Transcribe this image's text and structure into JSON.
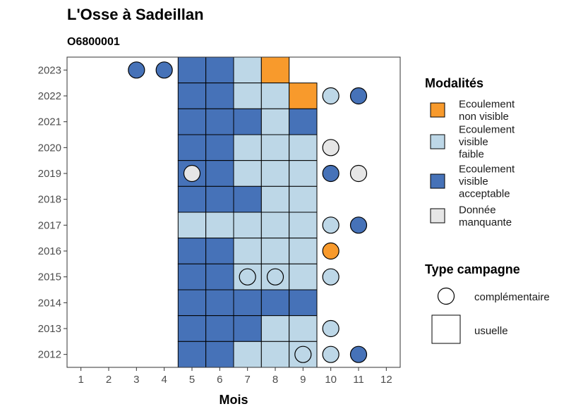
{
  "chart_data": {
    "type": "heatmap",
    "title": "L'Osse à Sadeillan",
    "subtitle": "O6800001",
    "xlabel": "Mois",
    "ylabel": "",
    "x_ticks": [
      "1",
      "2",
      "3",
      "4",
      "5",
      "6",
      "7",
      "8",
      "9",
      "10",
      "11",
      "12"
    ],
    "y_ticks": [
      "2012",
      "2013",
      "2014",
      "2015",
      "2016",
      "2017",
      "2018",
      "2019",
      "2020",
      "2021",
      "2022",
      "2023"
    ],
    "xlim": [
      0.5,
      12.5
    ],
    "ylim": [
      2011.5,
      2023.5
    ],
    "grid": false,
    "legend_placement": "right",
    "colors": {
      "ecoulement_non_visible": "#f89a2c",
      "ecoulement_visible_faible": "#bdd7e7",
      "ecoulement_visible_acceptable": "#4672b8",
      "donnee_manquante": "#e6e6e6"
    },
    "legend_modalites": {
      "title": "Modalités",
      "items": [
        {
          "key": "ecoulement_non_visible",
          "label": [
            "Ecoulement",
            "non visible"
          ]
        },
        {
          "key": "ecoulement_visible_faible",
          "label": [
            "Ecoulement",
            "visible",
            "faible"
          ]
        },
        {
          "key": "ecoulement_visible_acceptable",
          "label": [
            "Ecoulement",
            "visible",
            "acceptable"
          ]
        },
        {
          "key": "donnee_manquante",
          "label": [
            "Donnée",
            "manquante"
          ]
        }
      ]
    },
    "legend_campagne": {
      "title": "Type campagne",
      "items": [
        {
          "shape": "circle",
          "label": "complémentaire"
        },
        {
          "shape": "square",
          "label": "usuelle"
        }
      ]
    },
    "observations": [
      {
        "year": 2023,
        "month": 3,
        "value": "ecoulement_visible_acceptable",
        "campagne": "complémentaire"
      },
      {
        "year": 2023,
        "month": 4,
        "value": "ecoulement_visible_acceptable",
        "campagne": "complémentaire"
      },
      {
        "year": 2023,
        "month": 5,
        "value": "ecoulement_visible_acceptable",
        "campagne": "usuelle"
      },
      {
        "year": 2023,
        "month": 6,
        "value": "ecoulement_visible_acceptable",
        "campagne": "usuelle"
      },
      {
        "year": 2023,
        "month": 7,
        "value": "ecoulement_visible_faible",
        "campagne": "usuelle"
      },
      {
        "year": 2023,
        "month": 8,
        "value": "ecoulement_non_visible",
        "campagne": "usuelle"
      },
      {
        "year": 2022,
        "month": 5,
        "value": "ecoulement_visible_acceptable",
        "campagne": "usuelle"
      },
      {
        "year": 2022,
        "month": 6,
        "value": "ecoulement_visible_acceptable",
        "campagne": "usuelle"
      },
      {
        "year": 2022,
        "month": 7,
        "value": "ecoulement_visible_faible",
        "campagne": "usuelle"
      },
      {
        "year": 2022,
        "month": 8,
        "value": "ecoulement_visible_faible",
        "campagne": "usuelle"
      },
      {
        "year": 2022,
        "month": 9,
        "value": "ecoulement_non_visible",
        "campagne": "usuelle"
      },
      {
        "year": 2022,
        "month": 10,
        "value": "ecoulement_visible_faible",
        "campagne": "complémentaire"
      },
      {
        "year": 2022,
        "month": 11,
        "value": "ecoulement_visible_acceptable",
        "campagne": "complémentaire"
      },
      {
        "year": 2021,
        "month": 5,
        "value": "ecoulement_visible_acceptable",
        "campagne": "usuelle"
      },
      {
        "year": 2021,
        "month": 6,
        "value": "ecoulement_visible_acceptable",
        "campagne": "usuelle"
      },
      {
        "year": 2021,
        "month": 7,
        "value": "ecoulement_visible_acceptable",
        "campagne": "usuelle"
      },
      {
        "year": 2021,
        "month": 8,
        "value": "ecoulement_visible_faible",
        "campagne": "usuelle"
      },
      {
        "year": 2021,
        "month": 9,
        "value": "ecoulement_visible_acceptable",
        "campagne": "usuelle"
      },
      {
        "year": 2020,
        "month": 5,
        "value": "ecoulement_visible_acceptable",
        "campagne": "usuelle"
      },
      {
        "year": 2020,
        "month": 6,
        "value": "ecoulement_visible_acceptable",
        "campagne": "usuelle"
      },
      {
        "year": 2020,
        "month": 7,
        "value": "ecoulement_visible_faible",
        "campagne": "usuelle"
      },
      {
        "year": 2020,
        "month": 8,
        "value": "ecoulement_visible_faible",
        "campagne": "usuelle"
      },
      {
        "year": 2020,
        "month": 9,
        "value": "ecoulement_visible_faible",
        "campagne": "usuelle"
      },
      {
        "year": 2020,
        "month": 10,
        "value": "donnee_manquante",
        "campagne": "complémentaire"
      },
      {
        "year": 2019,
        "month": 5,
        "value": "ecoulement_visible_acceptable",
        "campagne": "usuelle"
      },
      {
        "year": 2019,
        "month": 5,
        "value": "donnee_manquante",
        "campagne": "complémentaire"
      },
      {
        "year": 2019,
        "month": 6,
        "value": "ecoulement_visible_acceptable",
        "campagne": "usuelle"
      },
      {
        "year": 2019,
        "month": 7,
        "value": "ecoulement_visible_faible",
        "campagne": "usuelle"
      },
      {
        "year": 2019,
        "month": 8,
        "value": "ecoulement_visible_faible",
        "campagne": "usuelle"
      },
      {
        "year": 2019,
        "month": 9,
        "value": "ecoulement_visible_faible",
        "campagne": "usuelle"
      },
      {
        "year": 2019,
        "month": 10,
        "value": "ecoulement_visible_acceptable",
        "campagne": "complémentaire"
      },
      {
        "year": 2019,
        "month": 11,
        "value": "donnee_manquante",
        "campagne": "complémentaire"
      },
      {
        "year": 2018,
        "month": 5,
        "value": "ecoulement_visible_acceptable",
        "campagne": "usuelle"
      },
      {
        "year": 2018,
        "month": 6,
        "value": "ecoulement_visible_acceptable",
        "campagne": "usuelle"
      },
      {
        "year": 2018,
        "month": 7,
        "value": "ecoulement_visible_acceptable",
        "campagne": "usuelle"
      },
      {
        "year": 2018,
        "month": 8,
        "value": "ecoulement_visible_faible",
        "campagne": "usuelle"
      },
      {
        "year": 2018,
        "month": 9,
        "value": "ecoulement_visible_faible",
        "campagne": "usuelle"
      },
      {
        "year": 2017,
        "month": 5,
        "value": "ecoulement_visible_faible",
        "campagne": "usuelle"
      },
      {
        "year": 2017,
        "month": 6,
        "value": "ecoulement_visible_faible",
        "campagne": "usuelle"
      },
      {
        "year": 2017,
        "month": 7,
        "value": "ecoulement_visible_faible",
        "campagne": "usuelle"
      },
      {
        "year": 2017,
        "month": 8,
        "value": "ecoulement_visible_faible",
        "campagne": "usuelle"
      },
      {
        "year": 2017,
        "month": 9,
        "value": "ecoulement_visible_faible",
        "campagne": "usuelle"
      },
      {
        "year": 2017,
        "month": 10,
        "value": "ecoulement_visible_faible",
        "campagne": "complémentaire"
      },
      {
        "year": 2017,
        "month": 11,
        "value": "ecoulement_visible_acceptable",
        "campagne": "complémentaire"
      },
      {
        "year": 2016,
        "month": 5,
        "value": "ecoulement_visible_acceptable",
        "campagne": "usuelle"
      },
      {
        "year": 2016,
        "month": 6,
        "value": "ecoulement_visible_acceptable",
        "campagne": "usuelle"
      },
      {
        "year": 2016,
        "month": 7,
        "value": "ecoulement_visible_faible",
        "campagne": "usuelle"
      },
      {
        "year": 2016,
        "month": 8,
        "value": "ecoulement_visible_faible",
        "campagne": "usuelle"
      },
      {
        "year": 2016,
        "month": 9,
        "value": "ecoulement_visible_faible",
        "campagne": "usuelle"
      },
      {
        "year": 2016,
        "month": 10,
        "value": "ecoulement_non_visible",
        "campagne": "complémentaire"
      },
      {
        "year": 2015,
        "month": 5,
        "value": "ecoulement_visible_acceptable",
        "campagne": "usuelle"
      },
      {
        "year": 2015,
        "month": 6,
        "value": "ecoulement_visible_acceptable",
        "campagne": "usuelle"
      },
      {
        "year": 2015,
        "month": 7,
        "value": "ecoulement_visible_faible",
        "campagne": "usuelle"
      },
      {
        "year": 2015,
        "month": 7,
        "value": "ecoulement_visible_faible",
        "campagne": "complémentaire"
      },
      {
        "year": 2015,
        "month": 8,
        "value": "ecoulement_visible_faible",
        "campagne": "usuelle"
      },
      {
        "year": 2015,
        "month": 8,
        "value": "ecoulement_visible_faible",
        "campagne": "complémentaire"
      },
      {
        "year": 2015,
        "month": 9,
        "value": "ecoulement_visible_faible",
        "campagne": "usuelle"
      },
      {
        "year": 2015,
        "month": 10,
        "value": "ecoulement_visible_faible",
        "campagne": "complémentaire"
      },
      {
        "year": 2014,
        "month": 5,
        "value": "ecoulement_visible_acceptable",
        "campagne": "usuelle"
      },
      {
        "year": 2014,
        "month": 6,
        "value": "ecoulement_visible_acceptable",
        "campagne": "usuelle"
      },
      {
        "year": 2014,
        "month": 7,
        "value": "ecoulement_visible_acceptable",
        "campagne": "usuelle"
      },
      {
        "year": 2014,
        "month": 8,
        "value": "ecoulement_visible_acceptable",
        "campagne": "usuelle"
      },
      {
        "year": 2014,
        "month": 9,
        "value": "ecoulement_visible_acceptable",
        "campagne": "usuelle"
      },
      {
        "year": 2013,
        "month": 5,
        "value": "ecoulement_visible_acceptable",
        "campagne": "usuelle"
      },
      {
        "year": 2013,
        "month": 6,
        "value": "ecoulement_visible_acceptable",
        "campagne": "usuelle"
      },
      {
        "year": 2013,
        "month": 7,
        "value": "ecoulement_visible_acceptable",
        "campagne": "usuelle"
      },
      {
        "year": 2013,
        "month": 8,
        "value": "ecoulement_visible_faible",
        "campagne": "usuelle"
      },
      {
        "year": 2013,
        "month": 9,
        "value": "ecoulement_visible_faible",
        "campagne": "usuelle"
      },
      {
        "year": 2013,
        "month": 10,
        "value": "ecoulement_visible_faible",
        "campagne": "complémentaire"
      },
      {
        "year": 2012,
        "month": 5,
        "value": "ecoulement_visible_acceptable",
        "campagne": "usuelle"
      },
      {
        "year": 2012,
        "month": 6,
        "value": "ecoulement_visible_acceptable",
        "campagne": "usuelle"
      },
      {
        "year": 2012,
        "month": 7,
        "value": "ecoulement_visible_faible",
        "campagne": "usuelle"
      },
      {
        "year": 2012,
        "month": 8,
        "value": "ecoulement_visible_faible",
        "campagne": "usuelle"
      },
      {
        "year": 2012,
        "month": 9,
        "value": "ecoulement_visible_faible",
        "campagne": "usuelle"
      },
      {
        "year": 2012,
        "month": 9,
        "value": "ecoulement_visible_faible",
        "campagne": "complémentaire"
      },
      {
        "year": 2012,
        "month": 10,
        "value": "ecoulement_visible_faible",
        "campagne": "complémentaire"
      },
      {
        "year": 2012,
        "month": 11,
        "value": "ecoulement_visible_acceptable",
        "campagne": "complémentaire"
      }
    ]
  }
}
